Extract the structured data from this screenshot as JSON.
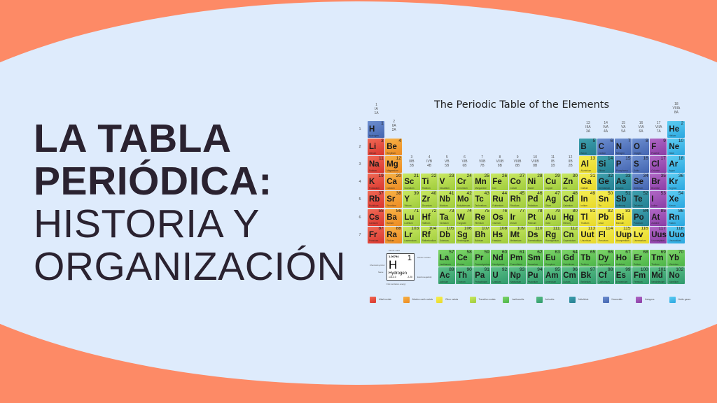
{
  "headline": {
    "line1": "LA TABLA",
    "line2": "PERIÓDICA:",
    "line3": "HISTORIA Y",
    "line4": "ORGANIZACIÓN"
  },
  "colors": {
    "background_accent": "#fd8a66",
    "background_main": "#deebfc",
    "text": "#2a2230"
  },
  "periodic_table": {
    "title": "The Periodic Table of the Elements",
    "category_colors": {
      "alkali": [
        "#f06a55",
        "#d9352e"
      ],
      "alkaline": [
        "#f7b347",
        "#ec8a22"
      ],
      "other": [
        "#f6ef55",
        "#e8d92a"
      ],
      "transition": [
        "#c9e862",
        "#9fcc3c"
      ],
      "lanthanide": [
        "#7fd56a",
        "#4bb548"
      ],
      "actinide": [
        "#5cbf86",
        "#2f9a6c"
      ],
      "metalloid": [
        "#3fa0ad",
        "#247f92"
      ],
      "nonmetal": [
        "#6e8fd0",
        "#4264b0"
      ],
      "halogen": [
        "#b068c4",
        "#8a3da6"
      ],
      "noble": [
        "#5fcdf2",
        "#2aa7e0"
      ]
    },
    "periods": [
      "1",
      "2",
      "3",
      "4",
      "5",
      "6",
      "7"
    ],
    "groups": [
      [
        "1",
        "IA",
        "1A"
      ],
      [
        "2",
        "IIA",
        "2A"
      ],
      [
        "3",
        "IIIB",
        "3B"
      ],
      [
        "4",
        "IVB",
        "4B"
      ],
      [
        "5",
        "VB",
        "5B"
      ],
      [
        "6",
        "VIB",
        "6B"
      ],
      [
        "7",
        "VIIB",
        "7B"
      ],
      [
        "8",
        "VIIIB",
        "8B"
      ],
      [
        "9",
        "VIIIB",
        "8B"
      ],
      [
        "10",
        "VIIIB",
        "8B"
      ],
      [
        "11",
        "IB",
        "1B"
      ],
      [
        "12",
        "IIB",
        "2B"
      ],
      [
        "13",
        "IIIA",
        "3A"
      ],
      [
        "14",
        "IVA",
        "4A"
      ],
      [
        "15",
        "VA",
        "5A"
      ],
      [
        "16",
        "VIA",
        "6A"
      ],
      [
        "17",
        "VIIA",
        "7A"
      ],
      [
        "18",
        "VIIIA",
        "8A"
      ]
    ],
    "elements": [
      [
        "H",
        1,
        "Hydrogen",
        "nonmetal",
        1,
        1
      ],
      [
        "He",
        2,
        "Helium",
        "noble",
        1,
        18
      ],
      [
        "Li",
        3,
        "Lithium",
        "alkali",
        2,
        1
      ],
      [
        "Be",
        4,
        "Beryllium",
        "alkaline",
        2,
        2
      ],
      [
        "B",
        5,
        "Boron",
        "metalloid",
        2,
        13
      ],
      [
        "C",
        6,
        "Carbon",
        "nonmetal",
        2,
        14
      ],
      [
        "N",
        7,
        "Nitrogen",
        "nonmetal",
        2,
        15
      ],
      [
        "O",
        8,
        "Oxygen",
        "nonmetal",
        2,
        16
      ],
      [
        "F",
        9,
        "Fluorine",
        "halogen",
        2,
        17
      ],
      [
        "Ne",
        10,
        "Neon",
        "noble",
        2,
        18
      ],
      [
        "Na",
        11,
        "Sodium",
        "alkali",
        3,
        1
      ],
      [
        "Mg",
        12,
        "Magnesium",
        "alkaline",
        3,
        2
      ],
      [
        "Al",
        13,
        "Aluminium",
        "other",
        3,
        13
      ],
      [
        "Si",
        14,
        "Silicon",
        "metalloid",
        3,
        14
      ],
      [
        "P",
        15,
        "Phosphorus",
        "nonmetal",
        3,
        15
      ],
      [
        "S",
        16,
        "Sulfur",
        "nonmetal",
        3,
        16
      ],
      [
        "Cl",
        17,
        "Chlorine",
        "halogen",
        3,
        17
      ],
      [
        "Ar",
        18,
        "Argon",
        "noble",
        3,
        18
      ],
      [
        "K",
        19,
        "Potassium",
        "alkali",
        4,
        1
      ],
      [
        "Ca",
        20,
        "Calcium",
        "alkaline",
        4,
        2
      ],
      [
        "Sc",
        21,
        "Scandium",
        "transition",
        4,
        3
      ],
      [
        "Ti",
        22,
        "Titanium",
        "transition",
        4,
        4
      ],
      [
        "V",
        23,
        "Vanadium",
        "transition",
        4,
        5
      ],
      [
        "Cr",
        24,
        "Chromium",
        "transition",
        4,
        6
      ],
      [
        "Mn",
        25,
        "Manganese",
        "transition",
        4,
        7
      ],
      [
        "Fe",
        26,
        "Iron",
        "transition",
        4,
        8
      ],
      [
        "Co",
        27,
        "Cobalt",
        "transition",
        4,
        9
      ],
      [
        "Ni",
        28,
        "Nickel",
        "transition",
        4,
        10
      ],
      [
        "Cu",
        29,
        "Copper",
        "transition",
        4,
        11
      ],
      [
        "Zn",
        30,
        "Zinc",
        "transition",
        4,
        12
      ],
      [
        "Ga",
        31,
        "Gallium",
        "other",
        4,
        13
      ],
      [
        "Ge",
        32,
        "Germanium",
        "metalloid",
        4,
        14
      ],
      [
        "As",
        33,
        "Arsenic",
        "metalloid",
        4,
        15
      ],
      [
        "Se",
        34,
        "Selenium",
        "nonmetal",
        4,
        16
      ],
      [
        "Br",
        35,
        "Bromine",
        "halogen",
        4,
        17
      ],
      [
        "Kr",
        36,
        "Krypton",
        "noble",
        4,
        18
      ],
      [
        "Rb",
        37,
        "Rubidium",
        "alkali",
        5,
        1
      ],
      [
        "Sr",
        38,
        "Strontium",
        "alkaline",
        5,
        2
      ],
      [
        "Y",
        39,
        "Yttrium",
        "transition",
        5,
        3
      ],
      [
        "Zr",
        40,
        "Zirconium",
        "transition",
        5,
        4
      ],
      [
        "Nb",
        41,
        "Niobium",
        "transition",
        5,
        5
      ],
      [
        "Mo",
        42,
        "Molybdenum",
        "transition",
        5,
        6
      ],
      [
        "Tc",
        43,
        "Technetium",
        "transition",
        5,
        7
      ],
      [
        "Ru",
        44,
        "Ruthenium",
        "transition",
        5,
        8
      ],
      [
        "Rh",
        45,
        "Rhodium",
        "transition",
        5,
        9
      ],
      [
        "Pd",
        46,
        "Palladium",
        "transition",
        5,
        10
      ],
      [
        "Ag",
        47,
        "Silver",
        "transition",
        5,
        11
      ],
      [
        "Cd",
        48,
        "Cadmium",
        "transition",
        5,
        12
      ],
      [
        "In",
        49,
        "Indium",
        "other",
        5,
        13
      ],
      [
        "Sn",
        50,
        "Tin",
        "other",
        5,
        14
      ],
      [
        "Sb",
        51,
        "Antimony",
        "metalloid",
        5,
        15
      ],
      [
        "Te",
        52,
        "Tellurium",
        "metalloid",
        5,
        16
      ],
      [
        "I",
        53,
        "Iodine",
        "halogen",
        5,
        17
      ],
      [
        "Xe",
        54,
        "Xenon",
        "noble",
        5,
        18
      ],
      [
        "Cs",
        55,
        "Caesium",
        "alkali",
        6,
        1
      ],
      [
        "Ba",
        56,
        "Barium",
        "alkaline",
        6,
        2
      ],
      [
        "Lu",
        71,
        "Lutetium",
        "transition",
        6,
        3
      ],
      [
        "Hf",
        72,
        "Hafnium",
        "transition",
        6,
        4
      ],
      [
        "Ta",
        73,
        "Tantalum",
        "transition",
        6,
        5
      ],
      [
        "W",
        74,
        "Tungsten",
        "transition",
        6,
        6
      ],
      [
        "Re",
        75,
        "Rhenium",
        "transition",
        6,
        7
      ],
      [
        "Os",
        76,
        "Osmium",
        "transition",
        6,
        8
      ],
      [
        "Ir",
        77,
        "Iridium",
        "transition",
        6,
        9
      ],
      [
        "Pt",
        78,
        "Platinum",
        "transition",
        6,
        10
      ],
      [
        "Au",
        79,
        "Gold",
        "transition",
        6,
        11
      ],
      [
        "Hg",
        80,
        "Mercury",
        "transition",
        6,
        12
      ],
      [
        "Tl",
        81,
        "Thallium",
        "other",
        6,
        13
      ],
      [
        "Pb",
        82,
        "Lead",
        "other",
        6,
        14
      ],
      [
        "Bi",
        83,
        "Bismuth",
        "other",
        6,
        15
      ],
      [
        "Po",
        84,
        "Polonium",
        "metalloid",
        6,
        16
      ],
      [
        "At",
        85,
        "Astatine",
        "halogen",
        6,
        17
      ],
      [
        "Rn",
        86,
        "Radon",
        "noble",
        6,
        18
      ],
      [
        "Fr",
        87,
        "Francium",
        "alkali",
        7,
        1
      ],
      [
        "Ra",
        88,
        "Radium",
        "alkaline",
        7,
        2
      ],
      [
        "Lr",
        103,
        "Lawrencium",
        "transition",
        7,
        3
      ],
      [
        "Rf",
        104,
        "Rutherfordium",
        "transition",
        7,
        4
      ],
      [
        "Db",
        105,
        "Dubnium",
        "transition",
        7,
        5
      ],
      [
        "Sg",
        106,
        "Seaborgium",
        "transition",
        7,
        6
      ],
      [
        "Bh",
        107,
        "Bohrium",
        "transition",
        7,
        7
      ],
      [
        "Hs",
        108,
        "Hassium",
        "transition",
        7,
        8
      ],
      [
        "Mt",
        109,
        "Meitnerium",
        "transition",
        7,
        9
      ],
      [
        "Ds",
        110,
        "Darmstadtium",
        "transition",
        7,
        10
      ],
      [
        "Rg",
        111,
        "Roentgenium",
        "transition",
        7,
        11
      ],
      [
        "Cn",
        112,
        "Copernicium",
        "transition",
        7,
        12
      ],
      [
        "Uut",
        113,
        "Ununtrium",
        "other",
        7,
        13
      ],
      [
        "Fl",
        114,
        "Flerovium",
        "other",
        7,
        14
      ],
      [
        "Uup",
        115,
        "Ununpentium",
        "other",
        7,
        15
      ],
      [
        "Lv",
        116,
        "Livermorium",
        "other",
        7,
        16
      ],
      [
        "Uus",
        117,
        "Ununseptium",
        "halogen",
        7,
        17
      ],
      [
        "Uuo",
        118,
        "Ununoctium",
        "noble",
        7,
        18
      ],
      [
        "La",
        57,
        "Lanthanum",
        "lanthanide",
        8,
        5
      ],
      [
        "Ce",
        58,
        "Cerium",
        "lanthanide",
        8,
        6
      ],
      [
        "Pr",
        59,
        "Praseodymium",
        "lanthanide",
        8,
        7
      ],
      [
        "Nd",
        60,
        "Neodymium",
        "lanthanide",
        8,
        8
      ],
      [
        "Pm",
        61,
        "Promethium",
        "lanthanide",
        8,
        9
      ],
      [
        "Sm",
        62,
        "Samarium",
        "lanthanide",
        8,
        10
      ],
      [
        "Eu",
        63,
        "Europium",
        "lanthanide",
        8,
        11
      ],
      [
        "Gd",
        64,
        "Gadolinium",
        "lanthanide",
        8,
        12
      ],
      [
        "Tb",
        65,
        "Terbium",
        "lanthanide",
        8,
        13
      ],
      [
        "Dy",
        66,
        "Dysprosium",
        "lanthanide",
        8,
        14
      ],
      [
        "Ho",
        67,
        "Holmium",
        "lanthanide",
        8,
        15
      ],
      [
        "Er",
        68,
        "Erbium",
        "lanthanide",
        8,
        16
      ],
      [
        "Tm",
        69,
        "Thulium",
        "lanthanide",
        8,
        17
      ],
      [
        "Yb",
        70,
        "Ytterbium",
        "lanthanide",
        8,
        18
      ],
      [
        "Ac",
        89,
        "Actinium",
        "actinide",
        9,
        5
      ],
      [
        "Th",
        90,
        "Thorium",
        "actinide",
        9,
        6
      ],
      [
        "Pa",
        91,
        "Protactinium",
        "actinide",
        9,
        7
      ],
      [
        "U",
        92,
        "Uranium",
        "actinide",
        9,
        8
      ],
      [
        "Np",
        93,
        "Neptunium",
        "actinide",
        9,
        9
      ],
      [
        "Pu",
        94,
        "Plutonium",
        "actinide",
        9,
        10
      ],
      [
        "Am",
        95,
        "Americium",
        "actinide",
        9,
        11
      ],
      [
        "Cm",
        96,
        "Curium",
        "actinide",
        9,
        12
      ],
      [
        "Bk",
        97,
        "Berkelium",
        "actinide",
        9,
        13
      ],
      [
        "Cf",
        98,
        "Californium",
        "actinide",
        9,
        14
      ],
      [
        "Es",
        99,
        "Einsteinium",
        "actinide",
        9,
        15
      ],
      [
        "Fm",
        100,
        "Fermium",
        "actinide",
        9,
        16
      ],
      [
        "Md",
        101,
        "Mendelevium",
        "actinide",
        9,
        17
      ],
      [
        "No",
        102,
        "Nobelium",
        "actinide",
        9,
        18
      ]
    ],
    "key": {
      "mass": "1.00794",
      "number": "1",
      "symbol": "H",
      "name": "Hydrogen",
      "ionization": "1312.0",
      "electronegativity": "2.20",
      "labels": {
        "mass": "Atomic mass",
        "number": "Atomic number",
        "symbol": "Chemical symbol",
        "name": "Name",
        "electronegativity": "Electronegativity",
        "ionization": "First ionization energy"
      }
    },
    "legend": [
      [
        "alkali",
        "Alkali metals"
      ],
      [
        "alkaline",
        "Alkaline earth metals"
      ],
      [
        "other",
        "Other metals"
      ],
      [
        "transition",
        "Transition metals"
      ],
      [
        "lanthanide",
        "Lanthanoids"
      ],
      [
        "actinide",
        "Actinoids"
      ],
      [
        "metalloid",
        "Metalloids"
      ],
      [
        "nonmetal",
        "Nonmetals"
      ],
      [
        "halogen",
        "Halogens"
      ],
      [
        "noble",
        "Noble gases"
      ]
    ]
  }
}
